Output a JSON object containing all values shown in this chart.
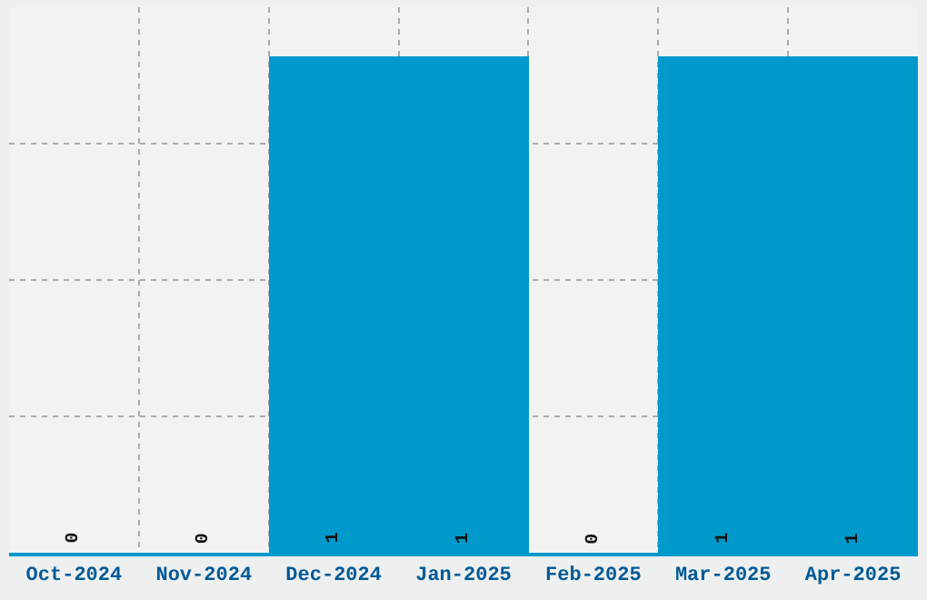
{
  "chart_data": {
    "type": "bar",
    "categories": [
      "Oct-2024",
      "Nov-2024",
      "Dec-2024",
      "Jan-2025",
      "Feb-2025",
      "Mar-2025",
      "Apr-2025"
    ],
    "values": [
      0,
      0,
      1,
      1,
      0,
      1,
      1
    ],
    "color": "#0099cc",
    "data_labels": true,
    "ylim": [
      0,
      1.1
    ],
    "yticks": [
      {
        "value": 0,
        "label": null
      },
      {
        "value": 0.275,
        "label": null
      },
      {
        "value": 0.55,
        "label": null
      },
      {
        "value": 0.825,
        "label": null
      }
    ],
    "grid": true,
    "tick_labels": "x"
  }
}
